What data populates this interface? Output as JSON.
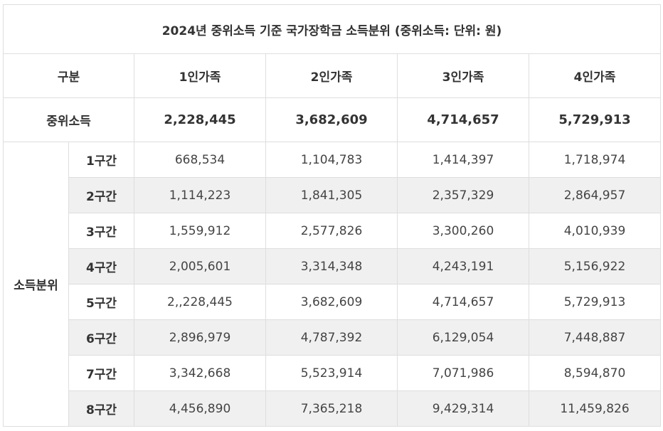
{
  "title": "2024년 중위소득 기준 국가장학금 소득분위 (중위소득: 단위: 원)",
  "header": {
    "category": "구분",
    "columns": [
      "1인가족",
      "2인가족",
      "3인가족",
      "4인가족"
    ]
  },
  "median": {
    "label": "중위소득",
    "values": [
      "2,228,445",
      "3,682,609",
      "4,714,657",
      "5,729,913"
    ]
  },
  "group_label": "소득분위",
  "bands": [
    {
      "label": "1구간",
      "values": [
        "668,534",
        "1,104,783",
        "1,414,397",
        "1,718,974"
      ]
    },
    {
      "label": "2구간",
      "values": [
        "1,114,223",
        "1,841,305",
        "2,357,329",
        "2,864,957"
      ]
    },
    {
      "label": "3구간",
      "values": [
        "1,559,912",
        "2,577,826",
        "3,300,260",
        "4,010,939"
      ]
    },
    {
      "label": "4구간",
      "values": [
        "2,005,601",
        "3,314,348",
        "4,243,191",
        "5,156,922"
      ]
    },
    {
      "label": "5구간",
      "values": [
        "2,,228,445",
        "3,682,609",
        "4,714,657",
        "5,729,913"
      ]
    },
    {
      "label": "6구간",
      "values": [
        "2,896,979",
        "4,787,392",
        "6,129,054",
        "7,448,887"
      ]
    },
    {
      "label": "7구간",
      "values": [
        "3,342,668",
        "5,523,914",
        "7,071,986",
        "8,594,870"
      ]
    },
    {
      "label": "8구간",
      "values": [
        "4,456,890",
        "7,365,218",
        "9,429,314",
        "11,459,826"
      ]
    }
  ]
}
